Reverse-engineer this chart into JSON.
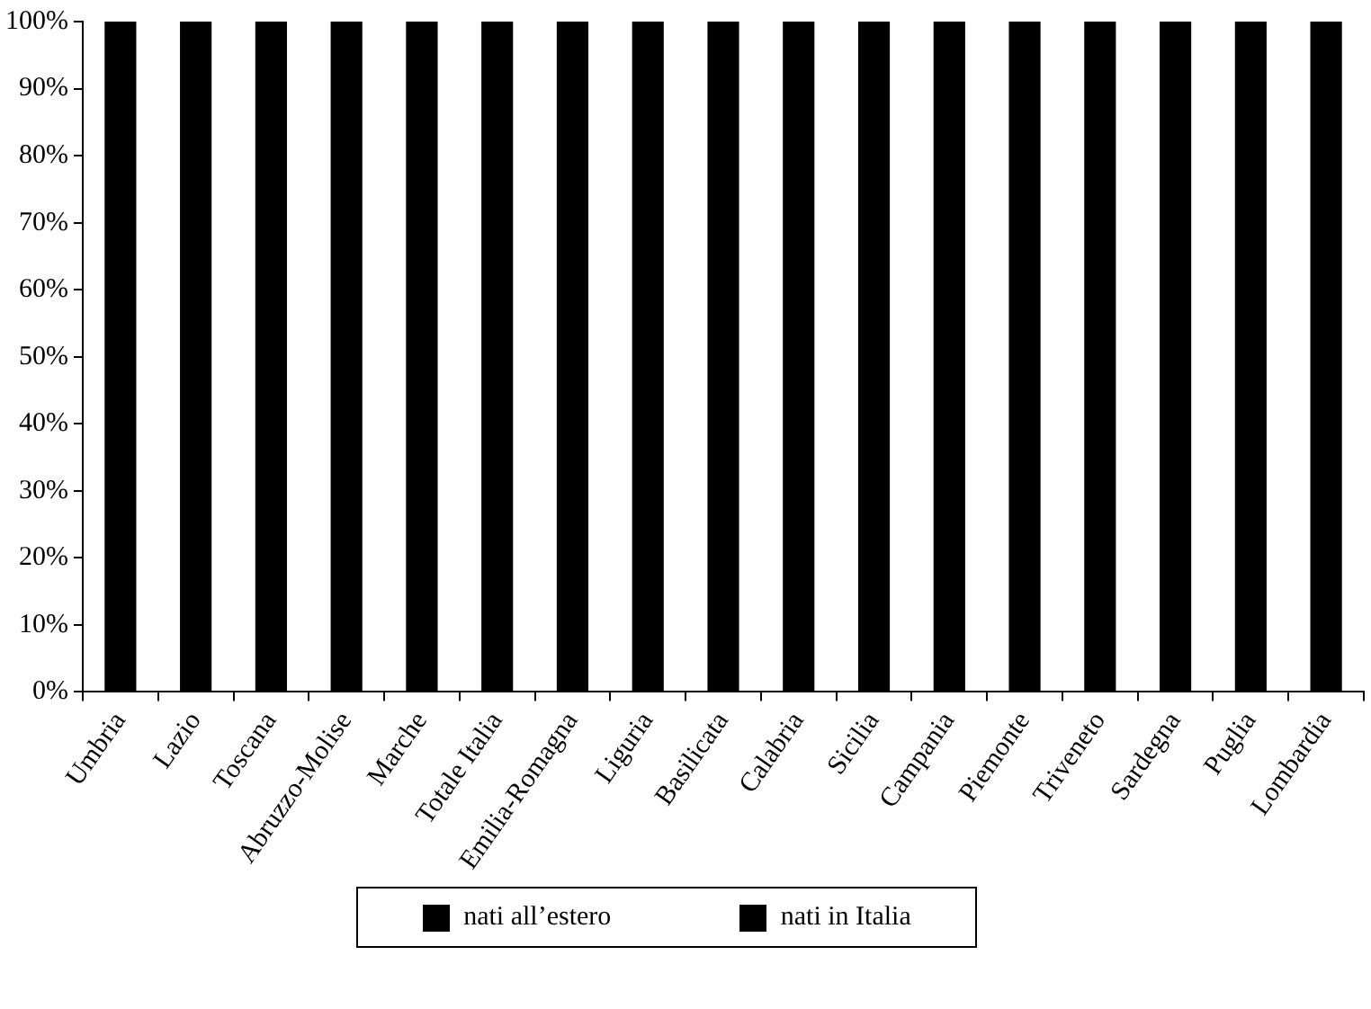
{
  "chart_data": {
    "type": "bar",
    "stacked": true,
    "grid": false,
    "legend": "bottom",
    "categories": [
      "Umbria",
      "Lazio",
      "Toscana",
      "Abruzzo-Molise",
      "Marche",
      "Totale Italia",
      "Emilia-Romagna",
      "Liguria",
      "Basilicata",
      "Calabria",
      "Sicilia",
      "Campania",
      "Piemonte",
      "Triveneto",
      "Sardegna",
      "Puglia",
      "Lombardia"
    ],
    "series": [
      {
        "name": "nati all’estero",
        "color": "#000000",
        "values": [
          null,
          null,
          null,
          null,
          null,
          null,
          null,
          null,
          null,
          null,
          null,
          null,
          null,
          null,
          null,
          null,
          null
        ]
      },
      {
        "name": "nati in Italia",
        "color": "#000000",
        "values": [
          100,
          100,
          100,
          100,
          100,
          100,
          100,
          100,
          100,
          100,
          100,
          100,
          100,
          100,
          100,
          100,
          100
        ]
      }
    ],
    "ylim": [
      0,
      100
    ],
    "yticks": [
      {
        "value": 0,
        "label": "0%"
      },
      {
        "value": 10,
        "label": "10%"
      },
      {
        "value": 20,
        "label": "20%"
      },
      {
        "value": 30,
        "label": "30%"
      },
      {
        "value": 40,
        "label": "40%"
      },
      {
        "value": 50,
        "label": "50%"
      },
      {
        "value": 60,
        "label": "60%"
      },
      {
        "value": 70,
        "label": "70%"
      },
      {
        "value": 80,
        "label": "80%"
      },
      {
        "value": 90,
        "label": "90%"
      },
      {
        "value": 100,
        "label": "100%"
      }
    ]
  }
}
